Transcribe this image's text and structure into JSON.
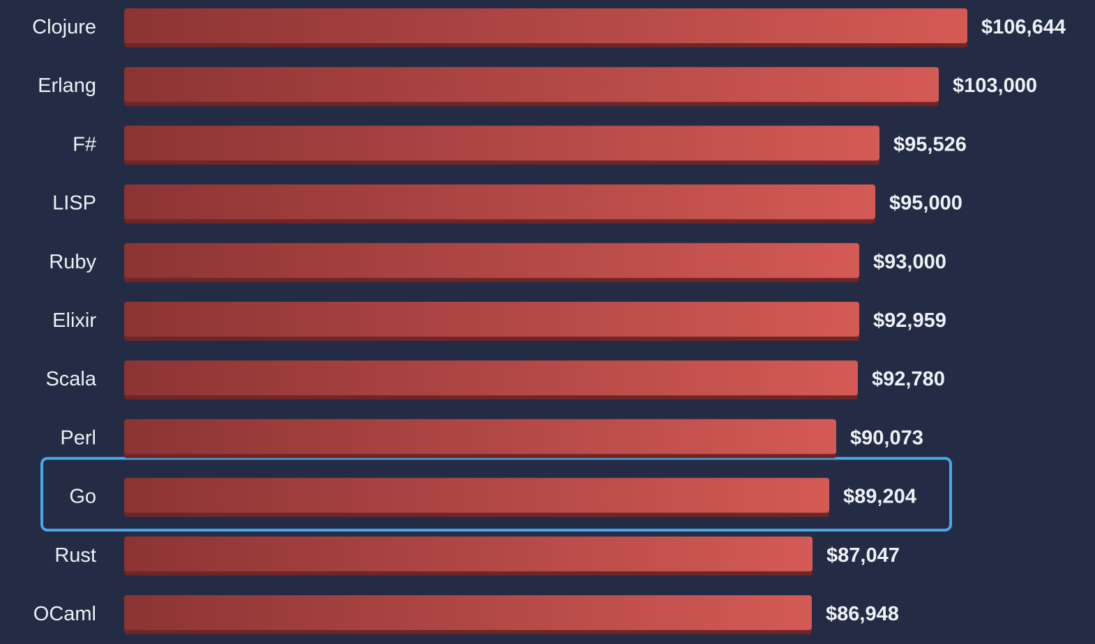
{
  "chart_data": {
    "type": "bar",
    "orientation": "horizontal",
    "categories": [
      "Clojure",
      "Erlang",
      "F#",
      "LISP",
      "Ruby",
      "Elixir",
      "Scala",
      "Perl",
      "Go",
      "Rust",
      "OCaml"
    ],
    "values": [
      106644,
      103000,
      95526,
      95000,
      93000,
      92959,
      92780,
      90073,
      89204,
      87047,
      86948
    ],
    "value_labels": [
      "$106,644",
      "$103,000",
      "$95,526",
      "$95,000",
      "$93,000",
      "$92,959",
      "$92,780",
      "$90,073",
      "$89,204",
      "$87,047",
      "$86,948"
    ],
    "highlighted_category": "Go",
    "title": "",
    "xlabel": "",
    "ylabel": "",
    "xlim": [
      0,
      106644
    ],
    "grid": false,
    "legend": "none"
  },
  "colors": {
    "background": "#232c44",
    "bar_start": "#8c3434",
    "bar_end": "#d45a55",
    "bar_shadow": "#6e2626",
    "highlight": "#4aa8ea",
    "text": "#eef1f6"
  }
}
